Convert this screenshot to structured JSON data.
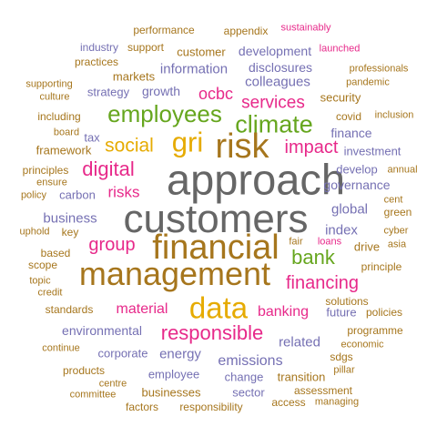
{
  "title": "",
  "palette": {
    "orange": "#d95f02",
    "grey": "#666666",
    "purple": "#7570b3",
    "pink": "#e7298a",
    "green": "#66a61e",
    "gold": "#e6ab02",
    "brown": "#a6761d"
  },
  "words": [
    {
      "text": "approach",
      "color": "grey"
    },
    {
      "text": "customers",
      "color": "grey"
    },
    {
      "text": "financial",
      "color": "brown"
    },
    {
      "text": "management",
      "color": "brown"
    },
    {
      "text": "risk",
      "color": "brown"
    },
    {
      "text": "gri",
      "color": "gold"
    },
    {
      "text": "data",
      "color": "gold"
    },
    {
      "text": "climate",
      "color": "green"
    },
    {
      "text": "employees",
      "color": "green"
    },
    {
      "text": "responsible",
      "color": "pink"
    },
    {
      "text": "digital",
      "color": "pink"
    },
    {
      "text": "bank",
      "color": "green"
    },
    {
      "text": "group",
      "color": "pink"
    },
    {
      "text": "financing",
      "color": "pink"
    },
    {
      "text": "social",
      "color": "gold"
    },
    {
      "text": "impact",
      "color": "pink"
    },
    {
      "text": "services",
      "color": "pink"
    },
    {
      "text": "ocbc",
      "color": "pink"
    },
    {
      "text": "risks",
      "color": "pink"
    },
    {
      "text": "material",
      "color": "pink"
    },
    {
      "text": "banking",
      "color": "pink"
    },
    {
      "text": "emissions",
      "color": "purple"
    },
    {
      "text": "business",
      "color": "purple"
    },
    {
      "text": "colleagues",
      "color": "purple"
    },
    {
      "text": "information",
      "color": "purple"
    },
    {
      "text": "growth",
      "color": "purple"
    },
    {
      "text": "related",
      "color": "purple"
    },
    {
      "text": "energy",
      "color": "purple"
    },
    {
      "text": "environmental",
      "color": "purple"
    },
    {
      "text": "index",
      "color": "purple"
    },
    {
      "text": "global",
      "color": "purple"
    },
    {
      "text": "governance",
      "color": "purple"
    },
    {
      "text": "finance",
      "color": "purple"
    },
    {
      "text": "development",
      "color": "purple"
    },
    {
      "text": "disclosures",
      "color": "purple"
    },
    {
      "text": "security",
      "color": "brown"
    },
    {
      "text": "investment",
      "color": "purple"
    },
    {
      "text": "develop",
      "color": "purple"
    },
    {
      "text": "carbon",
      "color": "purple"
    },
    {
      "text": "tax",
      "color": "purple"
    },
    {
      "text": "strategy",
      "color": "purple"
    },
    {
      "text": "corporate",
      "color": "purple"
    },
    {
      "text": "employee",
      "color": "purple"
    },
    {
      "text": "change",
      "color": "purple"
    },
    {
      "text": "sector",
      "color": "purple"
    },
    {
      "text": "businesses",
      "color": "brown"
    },
    {
      "text": "factors",
      "color": "brown"
    },
    {
      "text": "responsibility",
      "color": "brown"
    },
    {
      "text": "access",
      "color": "brown"
    },
    {
      "text": "transition",
      "color": "brown"
    },
    {
      "text": "future",
      "color": "purple"
    },
    {
      "text": "drive",
      "color": "brown"
    },
    {
      "text": "principle",
      "color": "brown"
    },
    {
      "text": "solutions",
      "color": "brown"
    },
    {
      "text": "policies",
      "color": "brown"
    },
    {
      "text": "programme",
      "color": "brown"
    },
    {
      "text": "economic",
      "color": "brown"
    },
    {
      "text": "sdgs",
      "color": "brown"
    },
    {
      "text": "pillar",
      "color": "brown"
    },
    {
      "text": "assessment",
      "color": "brown"
    },
    {
      "text": "managing",
      "color": "brown"
    },
    {
      "text": "performance",
      "color": "brown"
    },
    {
      "text": "appendix",
      "color": "brown"
    },
    {
      "text": "sustainably",
      "color": "pink"
    },
    {
      "text": "industry",
      "color": "purple"
    },
    {
      "text": "support",
      "color": "brown"
    },
    {
      "text": "customer",
      "color": "brown"
    },
    {
      "text": "launched",
      "color": "pink"
    },
    {
      "text": "practices",
      "color": "brown"
    },
    {
      "text": "markets",
      "color": "brown"
    },
    {
      "text": "professionals",
      "color": "brown"
    },
    {
      "text": "pandemic",
      "color": "brown"
    },
    {
      "text": "supporting",
      "color": "brown"
    },
    {
      "text": "culture",
      "color": "brown"
    },
    {
      "text": "including",
      "color": "brown"
    },
    {
      "text": "covid",
      "color": "brown"
    },
    {
      "text": "inclusion",
      "color": "brown"
    },
    {
      "text": "board",
      "color": "brown"
    },
    {
      "text": "framework",
      "color": "brown"
    },
    {
      "text": "principles",
      "color": "brown"
    },
    {
      "text": "ensure",
      "color": "brown"
    },
    {
      "text": "policy",
      "color": "brown"
    },
    {
      "text": "annual",
      "color": "brown"
    },
    {
      "text": "cent",
      "color": "brown"
    },
    {
      "text": "green",
      "color": "brown"
    },
    {
      "text": "uphold",
      "color": "brown"
    },
    {
      "text": "key",
      "color": "brown"
    },
    {
      "text": "based",
      "color": "brown"
    },
    {
      "text": "scope",
      "color": "brown"
    },
    {
      "text": "fair",
      "color": "brown"
    },
    {
      "text": "loans",
      "color": "pink"
    },
    {
      "text": "cyber",
      "color": "brown"
    },
    {
      "text": "asia",
      "color": "brown"
    },
    {
      "text": "topic",
      "color": "brown"
    },
    {
      "text": "credit",
      "color": "brown"
    },
    {
      "text": "standards",
      "color": "brown"
    },
    {
      "text": "continue",
      "color": "brown"
    },
    {
      "text": "products",
      "color": "brown"
    },
    {
      "text": "centre",
      "color": "brown"
    },
    {
      "text": "committee",
      "color": "brown"
    }
  ]
}
